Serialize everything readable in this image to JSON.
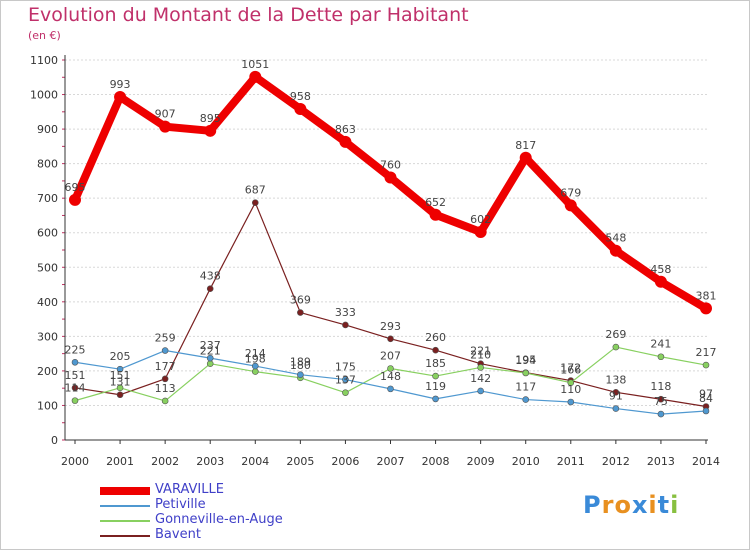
{
  "chart_data": {
    "type": "line",
    "title": "Evolution du Montant de la Dette par Habitant",
    "subtitle": "(en €)",
    "xlabel": "",
    "ylabel": "",
    "x": [
      "2000",
      "2001",
      "2002",
      "2003",
      "2004",
      "2005",
      "2006",
      "2007",
      "2008",
      "2009",
      "2010",
      "2011",
      "2012",
      "2013",
      "2014"
    ],
    "ylim": [
      0,
      1100
    ],
    "yticks": [
      "0",
      "100",
      "200",
      "300",
      "400",
      "500",
      "600",
      "700",
      "800",
      "900",
      "1000",
      "1100"
    ],
    "grid": "horizontal",
    "legend_position": "bottom-left",
    "series": [
      {
        "name": "VARAVILLE",
        "color": "#ee0000",
        "values": [
          695,
          993,
          907,
          895,
          1051,
          958,
          863,
          760,
          652,
          602,
          817,
          679,
          548,
          458,
          381
        ],
        "labels": [
          "695",
          "993",
          "907",
          "895",
          "1051",
          "958",
          "863",
          "760",
          "652",
          "602",
          "817",
          "679",
          "548",
          "458",
          "381"
        ]
      },
      {
        "name": "Petiville",
        "color": "#4f98d0",
        "values": [
          225,
          205,
          259,
          237,
          214,
          189,
          175,
          148,
          119,
          142,
          117,
          110,
          91,
          75,
          84
        ],
        "labels": [
          "225",
          "205",
          "259",
          "237",
          "214",
          "189",
          "175",
          "148",
          "119",
          "142",
          "117",
          "110",
          "91",
          "75",
          "84"
        ]
      },
      {
        "name": "Gonneville-en-Auge",
        "color": "#88d060",
        "values": [
          114,
          151,
          113,
          221,
          198,
          180,
          137,
          207,
          185,
          210,
          194,
          166,
          269,
          241,
          217
        ],
        "labels": [
          "114",
          "151",
          "113",
          "221",
          "198",
          "180",
          "137",
          "207",
          "185",
          "210",
          "194",
          "166",
          "269",
          "241",
          "217"
        ]
      },
      {
        "name": "Bavent",
        "color": "#7a2020",
        "values": [
          151,
          131,
          177,
          438,
          687,
          369,
          333,
          293,
          260,
          221,
          195,
          172,
          138,
          118,
          97
        ],
        "labels": [
          "151",
          "131",
          "177",
          "438",
          "687",
          "369",
          "333",
          "293",
          "260",
          "221",
          "195",
          "172",
          "138",
          "118",
          "97"
        ]
      }
    ]
  },
  "logo": {
    "letters": [
      "P",
      "r",
      "o",
      "x",
      "i",
      "t",
      "i"
    ],
    "colors": [
      "#3a8ad8",
      "#e89020",
      "#e89020",
      "#3a8ad8",
      "#e89020",
      "#3a8ad8",
      "#88c040"
    ]
  }
}
